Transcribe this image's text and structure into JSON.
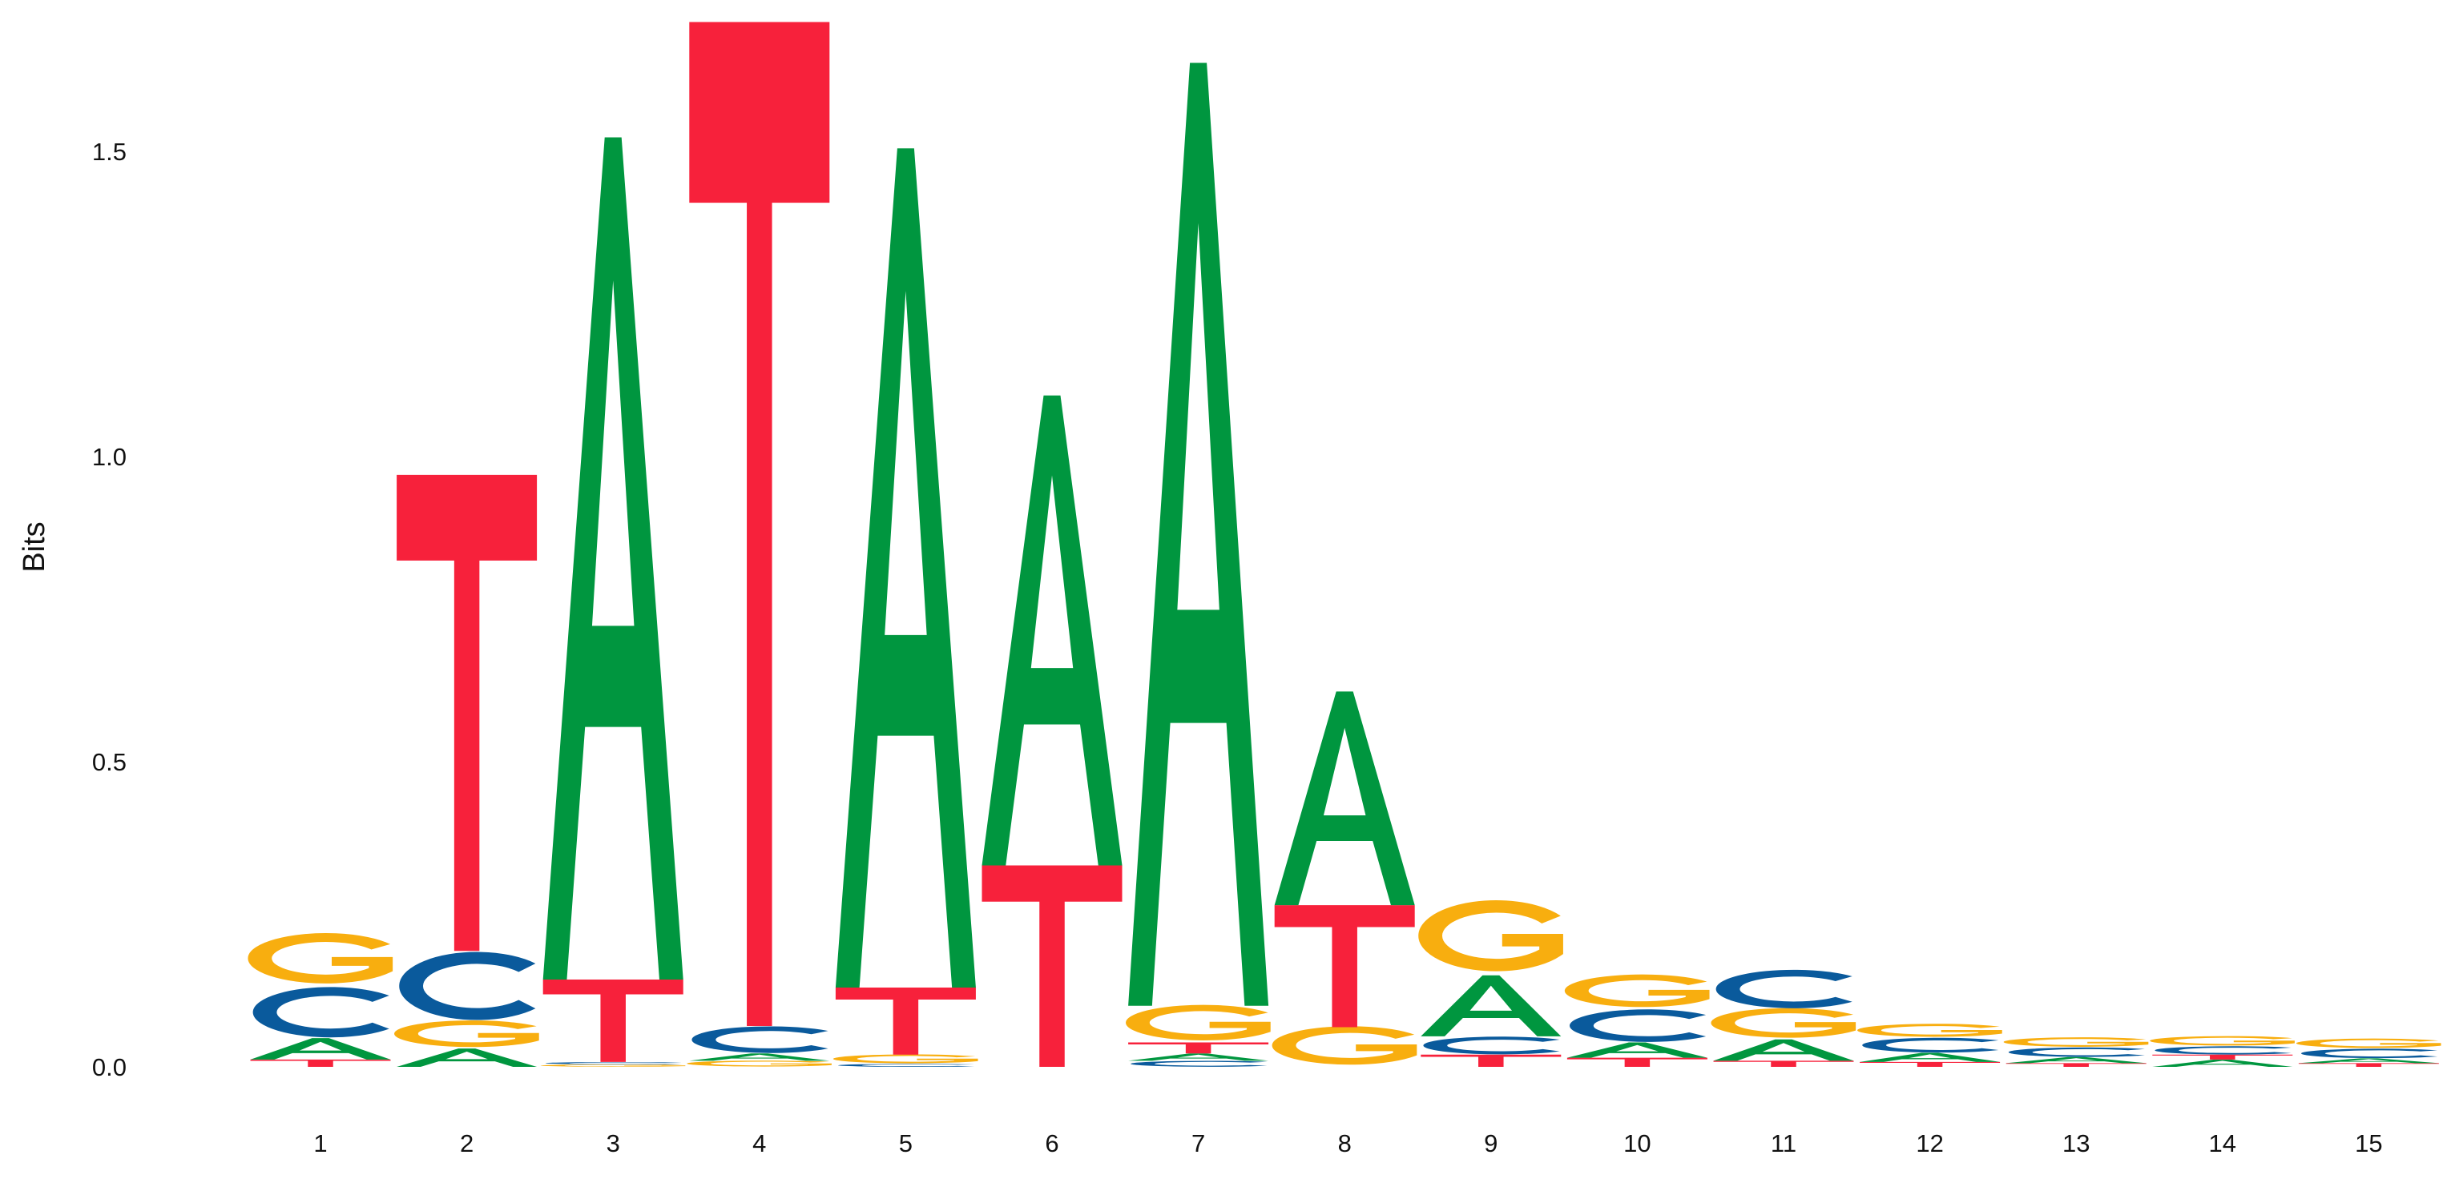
{
  "chart_data": {
    "type": "sequence-logo",
    "title": "",
    "xlabel": "",
    "ylabel": "Bits",
    "ylim": [
      0,
      1.72
    ],
    "yticks": [
      "0.0",
      "0.5",
      "1.0",
      "1.5"
    ],
    "ytick_values": [
      0,
      0.5,
      1.0,
      1.5
    ],
    "grid": false,
    "legend": "none",
    "colors": {
      "A": "#00963f",
      "C": "#0a5a9c",
      "G": "#f8ae0f",
      "T": "#f7213b"
    },
    "positions": [
      {
        "label": "1",
        "stack": [
          {
            "base": "T",
            "bits": 0.012
          },
          {
            "base": "A",
            "bits": 0.035
          },
          {
            "base": "C",
            "bits": 0.085
          },
          {
            "base": "G",
            "bits": 0.085
          }
        ]
      },
      {
        "label": "2",
        "stack": [
          {
            "base": "A",
            "bits": 0.03
          },
          {
            "base": "G",
            "bits": 0.045
          },
          {
            "base": "C",
            "bits": 0.115
          },
          {
            "base": "T",
            "bits": 0.78
          }
        ]
      },
      {
        "label": "3",
        "stack": [
          {
            "base": "G",
            "bits": 0.004
          },
          {
            "base": "C",
            "bits": 0.004
          },
          {
            "base": "T",
            "bits": 0.135
          },
          {
            "base": "A",
            "bits": 1.38
          }
        ]
      },
      {
        "label": "4",
        "stack": [
          {
            "base": "G",
            "bits": 0.01
          },
          {
            "base": "A",
            "bits": 0.012
          },
          {
            "base": "C",
            "bits": 0.045
          },
          {
            "base": "T",
            "bits": 1.645
          }
        ]
      },
      {
        "label": "5",
        "stack": [
          {
            "base": "C",
            "bits": 0.005
          },
          {
            "base": "G",
            "bits": 0.015
          },
          {
            "base": "T",
            "bits": 0.11
          },
          {
            "base": "A",
            "bits": 1.375
          }
        ]
      },
      {
        "label": "6",
        "stack": [
          {
            "base": "T",
            "bits": 0.33
          },
          {
            "base": "A",
            "bits": 0.77
          }
        ]
      },
      {
        "label": "7",
        "stack": [
          {
            "base": "C",
            "bits": 0.01
          },
          {
            "base": "A",
            "bits": 0.012
          },
          {
            "base": "T",
            "bits": 0.018
          },
          {
            "base": "G",
            "bits": 0.06
          },
          {
            "base": "A",
            "bits": 1.545
          }
        ]
      },
      {
        "label": "8",
        "stack": [
          {
            "base": "G",
            "bits": 0.065
          },
          {
            "base": "T",
            "bits": 0.2
          },
          {
            "base": "A",
            "bits": 0.35
          }
        ]
      },
      {
        "label": "9",
        "stack": [
          {
            "base": "T",
            "bits": 0.02
          },
          {
            "base": "C",
            "bits": 0.03
          },
          {
            "base": "A",
            "bits": 0.1
          },
          {
            "base": "G",
            "bits": 0.12
          }
        ]
      },
      {
        "label": "10",
        "stack": [
          {
            "base": "T",
            "bits": 0.015
          },
          {
            "base": "A",
            "bits": 0.025
          },
          {
            "base": "C",
            "bits": 0.055
          },
          {
            "base": "G",
            "bits": 0.055
          }
        ]
      },
      {
        "label": "11",
        "stack": [
          {
            "base": "T",
            "bits": 0.01
          },
          {
            "base": "A",
            "bits": 0.035
          },
          {
            "base": "G",
            "bits": 0.05
          },
          {
            "base": "C",
            "bits": 0.065
          }
        ]
      },
      {
        "label": "12",
        "stack": [
          {
            "base": "T",
            "bits": 0.008
          },
          {
            "base": "A",
            "bits": 0.015
          },
          {
            "base": "C",
            "bits": 0.025
          },
          {
            "base": "G",
            "bits": 0.022
          }
        ]
      },
      {
        "label": "13",
        "stack": [
          {
            "base": "T",
            "bits": 0.006
          },
          {
            "base": "A",
            "bits": 0.01
          },
          {
            "base": "C",
            "bits": 0.016
          },
          {
            "base": "G",
            "bits": 0.016
          }
        ]
      },
      {
        "label": "14",
        "stack": [
          {
            "base": "A",
            "bits": 0.012
          },
          {
            "base": "T",
            "bits": 0.008
          },
          {
            "base": "C",
            "bits": 0.014
          },
          {
            "base": "G",
            "bits": 0.016
          }
        ]
      },
      {
        "label": "15",
        "stack": [
          {
            "base": "T",
            "bits": 0.006
          },
          {
            "base": "A",
            "bits": 0.008
          },
          {
            "base": "C",
            "bits": 0.016
          },
          {
            "base": "G",
            "bits": 0.016
          }
        ]
      }
    ]
  }
}
